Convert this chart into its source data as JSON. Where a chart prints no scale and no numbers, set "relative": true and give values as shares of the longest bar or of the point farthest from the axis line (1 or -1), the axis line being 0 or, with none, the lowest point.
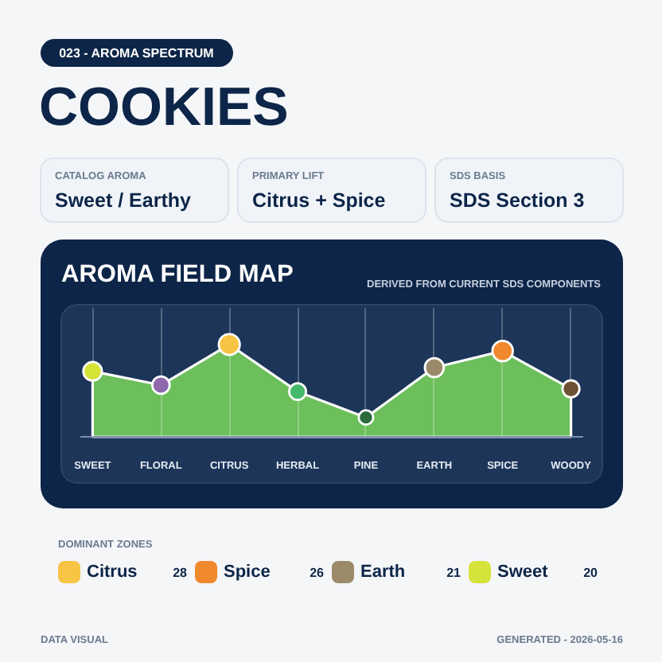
{
  "chart_data": [
    {
      "type": "other",
      "title": "COOKIES",
      "subtitle": "023 - AROMA SPECTRUM",
      "annotations": [
        "CATALOG AROMA",
        "Sweet / Earthy",
        "PRIMARY LIFT",
        "Citrus + Spice",
        "SDS BASIS",
        "SDS Section 3"
      ]
    },
    {
      "type": "area",
      "title": "AROMA FIELD MAP",
      "subtitle": "DERIVED FROM CURRENT SDS COMPONENTS",
      "categories": [
        "SWEET",
        "FLORAL",
        "CITRUS",
        "HERBAL",
        "PINE",
        "EARTH",
        "SPICE",
        "WOODY"
      ],
      "values": [
        0.71,
        0.56,
        1,
        0.49,
        0.21,
        0.75,
        0.93,
        0.52
      ],
      "relative": true,
      "color": "#6cbf5a",
      "colors": [
        "#d5e336",
        "#8d68ad",
        "#f8c443",
        "#45b96b",
        "#2b6b3c",
        "#9b8a69",
        "#f0892e",
        "#6f5034"
      ],
      "marker": "circle",
      "grid": "x"
    },
    {
      "type": "other",
      "title": "DOMINANT ZONES",
      "categories": [
        "Citrus",
        "Spice",
        "Earth",
        "Sweet"
      ],
      "values": [
        28,
        26,
        21,
        20
      ],
      "colors": [
        "#f8c443",
        "#f0892e",
        "#9b8a69",
        "#d6e33a"
      ],
      "data_labels": true,
      "annotations": [
        "DATA VISUAL",
        "GENERATED - 2026-05-16"
      ]
    }
  ]
}
